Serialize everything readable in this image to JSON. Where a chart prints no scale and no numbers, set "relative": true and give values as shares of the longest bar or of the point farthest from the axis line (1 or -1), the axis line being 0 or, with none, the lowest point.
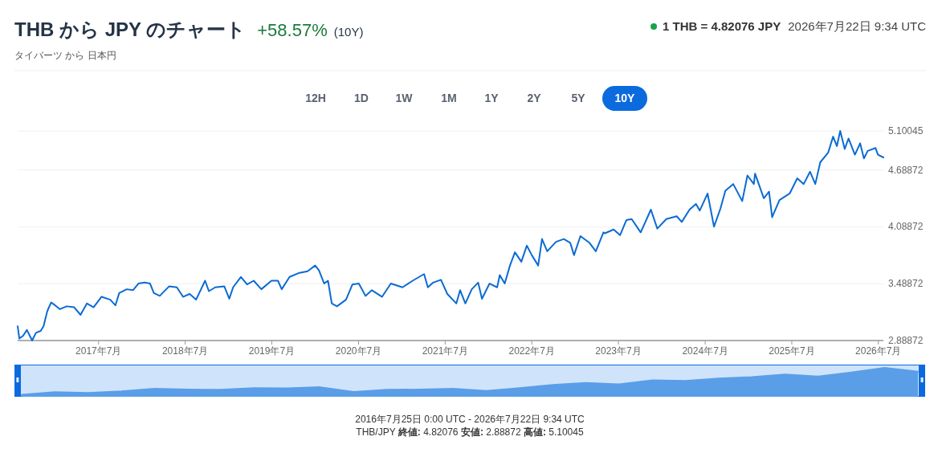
{
  "chart_data": [
    {
      "type": "line",
      "title": "THB から JPY のチャート",
      "subtitle": "タイバーツ から 日本円",
      "annotations": [
        "+58.57%",
        "(10Y)",
        "1 THB = 4.82076 JPY",
        "2026年7月22日 9:34 UTC",
        "12H",
        "1D",
        "1W",
        "1M",
        "1Y",
        "2Y",
        "5Y",
        "10Y",
        "2016年7月25日 0:00 UTC - 2026年7月22日 9:34 UTC",
        "THB/JPY **終値:** 4.82076 **安値:** 2.88872 **高値:** 5.10045"
      ],
      "x": [
        "2016-07-25",
        "2016-08-01",
        "2016-08-17",
        "2016-09-02",
        "2016-09-24",
        "2016-10-10",
        "2016-10-30",
        "2016-11-11",
        "2016-11-27",
        "2016-12-13",
        "2016-12-30",
        "2017-01-19",
        "2017-02-17",
        "2017-03-20",
        "2017-04-16",
        "2017-05-13",
        "2017-06-10",
        "2017-07-13",
        "2017-08-19",
        "2017-09-10",
        "2017-09-26",
        "2017-10-28",
        "2017-11-23",
        "2017-12-16",
        "2018-01-11",
        "2018-02-03",
        "2018-02-19",
        "2018-03-16",
        "2018-04-24",
        "2018-05-27",
        "2018-06-22",
        "2018-07-20",
        "2018-08-16",
        "2018-09-23",
        "2018-10-09",
        "2018-11-05",
        "2018-12-13",
        "2019-01-03",
        "2019-01-19",
        "2019-02-21",
        "2019-03-19",
        "2019-04-16",
        "2019-05-18",
        "2019-06-30",
        "2019-07-27",
        "2019-08-12",
        "2019-09-14",
        "2019-10-22",
        "2019-11-29",
        "2019-12-31",
        "2020-01-16",
        "2020-02-07",
        "2020-02-23",
        "2020-03-10",
        "2020-04-01",
        "2020-05-09",
        "2020-06-05",
        "2020-07-02",
        "2020-07-30",
        "2020-08-26",
        "2020-10-08",
        "2020-11-14",
        "2021-01-02",
        "2021-02-14",
        "2021-04-03",
        "2021-04-19",
        "2021-05-11",
        "2021-06-13",
        "2021-07-10",
        "2021-08-17",
        "2021-09-02",
        "2021-09-24",
        "2021-10-21",
        "2021-11-17",
        "2021-12-03",
        "2022-01-04",
        "2022-02-05",
        "2022-02-16",
        "2022-03-09",
        "2022-03-31",
        "2022-04-21",
        "2022-05-18",
        "2022-06-10",
        "2022-07-01",
        "2022-07-28",
        "2022-08-13",
        "2022-09-04",
        "2022-10-11",
        "2022-11-13",
        "2022-12-10",
        "2022-12-26",
        "2023-01-22",
        "2023-03-01",
        "2023-03-28",
        "2023-04-29",
        "2023-05-05",
        "2023-06-11",
        "2023-07-08",
        "2023-08-04",
        "2023-08-26",
        "2023-10-03",
        "2023-11-15",
        "2023-12-12",
        "2024-01-19",
        "2024-03-03",
        "2024-03-24",
        "2024-04-26",
        "2024-05-23",
        "2024-06-08",
        "2024-07-11",
        "2024-08-07",
        "2024-09-03",
        "2024-09-24",
        "2024-10-27",
        "2024-12-04",
        "2024-12-26",
        "2025-01-22",
        "2025-01-27",
        "2025-03-05",
        "2025-03-27",
        "2025-04-09",
        "2025-05-10",
        "2025-06-22",
        "2025-07-24",
        "2025-08-20",
        "2025-09-16",
        "2025-10-08",
        "2025-10-29",
        "2025-12-01",
        "2025-12-22",
        "2026-01-07",
        "2026-01-21",
        "2026-02-09",
        "2026-02-25",
        "2026-03-24",
        "2026-04-15",
        "2026-05-01",
        "2026-05-17",
        "2026-06-19",
        "2026-06-29",
        "2026-07-22"
      ],
      "values": [
        3.04,
        2.91,
        2.94,
        3.0,
        2.88872,
        2.97,
        2.99,
        3.04,
        3.2,
        3.29,
        3.26,
        3.22,
        3.25,
        3.24,
        3.16,
        3.28,
        3.24,
        3.35,
        3.32,
        3.26,
        3.39,
        3.43,
        3.42,
        3.49,
        3.5,
        3.49,
        3.39,
        3.36,
        3.46,
        3.45,
        3.35,
        3.38,
        3.32,
        3.52,
        3.41,
        3.45,
        3.46,
        3.33,
        3.45,
        3.56,
        3.48,
        3.52,
        3.43,
        3.52,
        3.52,
        3.43,
        3.56,
        3.6,
        3.62,
        3.68,
        3.63,
        3.49,
        3.52,
        3.28,
        3.25,
        3.32,
        3.48,
        3.49,
        3.36,
        3.42,
        3.35,
        3.49,
        3.45,
        3.52,
        3.59,
        3.45,
        3.5,
        3.53,
        3.38,
        3.28,
        3.42,
        3.28,
        3.43,
        3.5,
        3.33,
        3.49,
        3.45,
        3.58,
        3.49,
        3.68,
        3.82,
        3.72,
        3.89,
        3.79,
        3.68,
        3.96,
        3.83,
        3.93,
        3.96,
        3.92,
        3.79,
        3.99,
        3.92,
        3.83,
        4.03,
        4.02,
        4.06,
        4.0,
        4.16,
        4.17,
        4.03,
        4.27,
        4.07,
        4.17,
        4.2,
        4.14,
        4.27,
        4.33,
        4.26,
        4.44,
        4.09,
        4.28,
        4.47,
        4.54,
        4.36,
        4.63,
        4.54,
        4.65,
        4.39,
        4.46,
        4.19,
        4.37,
        4.44,
        4.6,
        4.54,
        4.67,
        4.54,
        4.77,
        4.87,
        5.04,
        4.94,
        5.10045,
        4.91,
        5.02,
        4.85,
        4.97,
        4.81,
        4.89,
        4.92,
        4.85,
        4.82076
      ],
      "color": "#0b6bd3",
      "marker": "none",
      "line_style": "solid",
      "grid": "y",
      "xlim": [
        "2016-07-25",
        "2026-07-22"
      ],
      "xticks": [
        {
          "value": "2017-07",
          "label": "2017年7月"
        },
        {
          "value": "2018-07",
          "label": "2018年7月"
        },
        {
          "value": "2019-07",
          "label": "2019年7月"
        },
        {
          "value": "2020-07",
          "label": "2020年7月"
        },
        {
          "value": "2021-07",
          "label": "2021年7月"
        },
        {
          "value": "2022-07",
          "label": "2022年7月"
        },
        {
          "value": "2023-07",
          "label": "2023年7月"
        },
        {
          "value": "2024-07",
          "label": "2024年7月"
        },
        {
          "value": "2025-07",
          "label": "2025年7月"
        },
        {
          "value": "2026-07",
          "label": "2026年7月"
        }
      ],
      "ylim": [
        2.88872,
        5.10045
      ],
      "yticks": [
        2.88872,
        3.48872,
        4.08872,
        4.68872,
        5.10045
      ]
    },
    {
      "type": "area",
      "relative": true,
      "color": "#5a9ee8",
      "categories": [
        null,
        null,
        null,
        null,
        null,
        null,
        null,
        null,
        null,
        null,
        null,
        null,
        null,
        null,
        null,
        null,
        null,
        null,
        null,
        null,
        null,
        null,
        null,
        null,
        null,
        null,
        null,
        null
      ],
      "values": [
        0.07,
        0.16,
        0.13,
        0.19,
        0.28,
        0.25,
        0.24,
        0.3,
        0.29,
        0.33,
        0.17,
        0.24,
        0.25,
        0.28,
        0.2,
        0.3,
        0.41,
        0.48,
        0.43,
        0.57,
        0.55,
        0.63,
        0.68,
        0.77,
        0.7,
        0.84,
        1.0,
        0.87
      ]
    }
  ]
}
